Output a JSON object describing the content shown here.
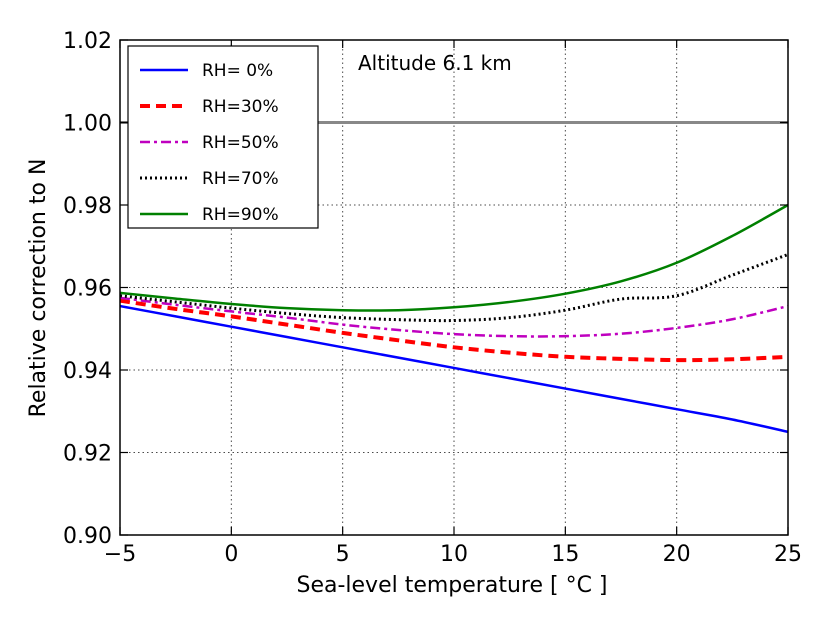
{
  "chart_data": {
    "type": "line",
    "title": "",
    "xlabel": "Sea-level temperature [ °C ]",
    "ylabel": "Relative correction to N",
    "xlim": [
      -5,
      25
    ],
    "ylim": [
      0.9,
      1.02
    ],
    "xticks": [
      -5,
      0,
      5,
      10,
      15,
      20,
      25
    ],
    "xtick_labels": [
      "−5",
      "0",
      "5",
      "10",
      "15",
      "20",
      "25"
    ],
    "yticks": [
      0.9,
      0.92,
      0.94,
      0.96,
      0.98,
      1.0,
      1.02
    ],
    "ytick_labels": [
      "0.90",
      "0.92",
      "0.94",
      "0.96",
      "0.98",
      "1.00",
      "1.02"
    ],
    "grid": true,
    "legend_position": "top-left",
    "annotation": "Altitude 6.1 km",
    "reference_line": {
      "y": 1.0,
      "color": "#888888"
    },
    "x": [
      -5,
      -2.5,
      0,
      2.5,
      5,
      7.5,
      10,
      12.5,
      15,
      17.5,
      20,
      22.5,
      25
    ],
    "series": [
      {
        "name": "RH= 0%",
        "color": "#0000ff",
        "dash": "solid",
        "values": [
          0.9555,
          0.953,
          0.9505,
          0.948,
          0.9455,
          0.943,
          0.9405,
          0.938,
          0.9355,
          0.933,
          0.9305,
          0.928,
          0.925
        ]
      },
      {
        "name": "RH=30%",
        "color": "#ff0000",
        "dash": "dashed",
        "values": [
          0.9568,
          0.9548,
          0.953,
          0.951,
          0.949,
          0.9472,
          0.9455,
          0.9442,
          0.9432,
          0.9427,
          0.9424,
          0.9426,
          0.9432
        ]
      },
      {
        "name": "RH=50%",
        "color": "#bf00bf",
        "dash": "dashdot",
        "values": [
          0.9575,
          0.9558,
          0.9542,
          0.9527,
          0.951,
          0.9497,
          0.9487,
          0.9482,
          0.9482,
          0.9488,
          0.9502,
          0.9523,
          0.9555
        ]
      },
      {
        "name": "RH=70%",
        "color": "#000000",
        "dash": "dotted",
        "values": [
          0.958,
          0.9565,
          0.955,
          0.9537,
          0.9527,
          0.9522,
          0.952,
          0.9527,
          0.9545,
          0.9572,
          0.958,
          0.963,
          0.968
        ]
      },
      {
        "name": "RH=90%",
        "color": "#008000",
        "dash": "solid",
        "values": [
          0.9587,
          0.9573,
          0.956,
          0.955,
          0.9545,
          0.9545,
          0.9552,
          0.9565,
          0.9585,
          0.9615,
          0.966,
          0.9725,
          0.98
        ]
      }
    ]
  }
}
